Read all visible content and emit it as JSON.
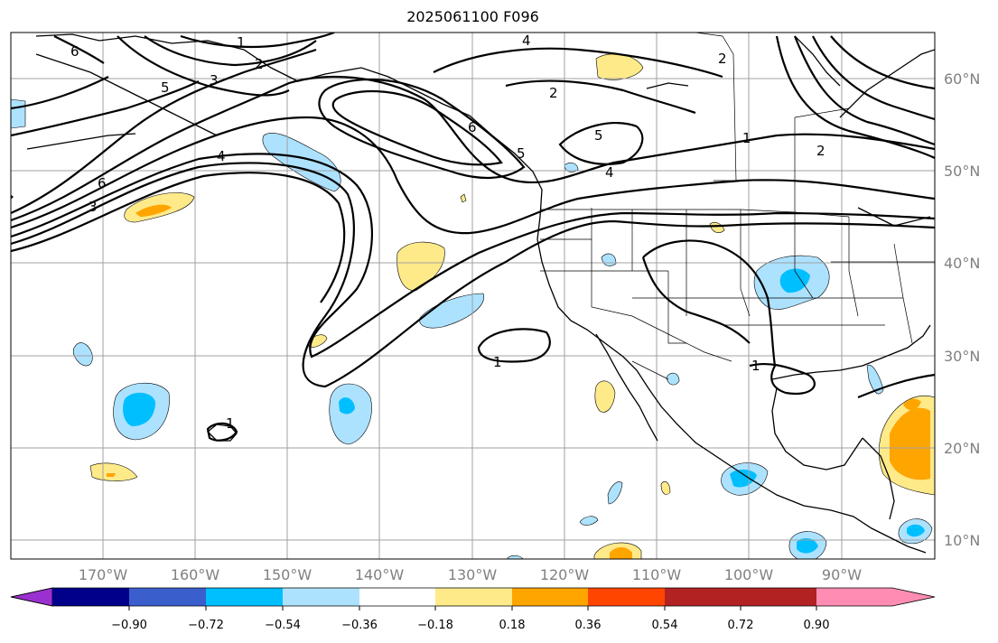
{
  "title": "2025061100 F096",
  "lat_labels": [
    "60°N",
    "50°N",
    "40°N",
    "30°N",
    "20°N",
    "10°N"
  ],
  "lon_labels": [
    "170°W",
    "160°W",
    "150°W",
    "140°W",
    "130°W",
    "120°W",
    "110°W",
    "100°W",
    "90°W"
  ],
  "contour_labels": [
    "1",
    "2",
    "3",
    "4",
    "5",
    "6"
  ],
  "colorbar": {
    "ticks": [
      "−0.90",
      "−0.72",
      "−0.54",
      "−0.36",
      "−0.18",
      "0.18",
      "0.36",
      "0.54",
      "0.72",
      "0.90"
    ],
    "colors": [
      "#9b30d0",
      "#00008b",
      "#3a5fcd",
      "#00bfff",
      "#ade2ff",
      "#ffffff",
      "#ffea8a",
      "#ffa500",
      "#ff4500",
      "#b22222",
      "#ff8cb3"
    ]
  }
}
